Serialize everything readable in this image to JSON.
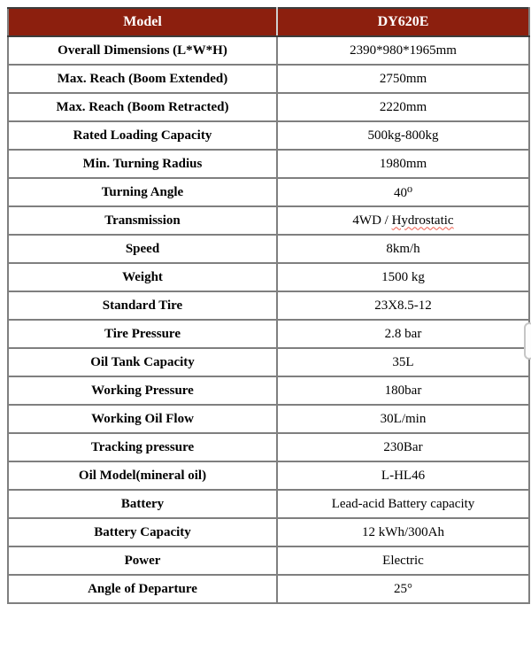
{
  "table": {
    "header": {
      "label": "Model",
      "value": "DY620E"
    },
    "rows": [
      {
        "label": "Overall Dimensions (L*W*H)",
        "value": "2390*980*1965mm"
      },
      {
        "label": "Max. Reach (Boom Extended)",
        "value": "2750mm"
      },
      {
        "label": "Max. Reach (Boom Retracted)",
        "value": "2220mm"
      },
      {
        "label": "Rated Loading Capacity",
        "value": "500kg-800kg"
      },
      {
        "label": "Min. Turning Radius",
        "value": "1980mm"
      },
      {
        "label": "Turning Angle",
        "value": "40⁰"
      },
      {
        "label": "Transmission",
        "value": "4WD / Hydrostatic",
        "spellcheck_word": "Hydrostatic"
      },
      {
        "label": "Speed",
        "value": "8km/h"
      },
      {
        "label": "Weight",
        "value": "1500 kg"
      },
      {
        "label": "Standard Tire",
        "value": "23X8.5-12"
      },
      {
        "label": "Tire Pressure",
        "value": "2.8 bar"
      },
      {
        "label": "Oil Tank Capacity",
        "value": "35L"
      },
      {
        "label": "Working Pressure",
        "value": "180bar"
      },
      {
        "label": "Working Oil Flow",
        "value": "30L/min"
      },
      {
        "label": "Tracking pressure",
        "value": "230Bar"
      },
      {
        "label": "Oil Model(mineral oil)",
        "value": "L-HL46"
      },
      {
        "label": "Battery",
        "value": "Lead-acid Battery capacity"
      },
      {
        "label": "Battery Capacity",
        "value": "12 kWh/300Ah"
      },
      {
        "label": "Power",
        "value": "Electric"
      },
      {
        "label": "Angle of Departure",
        "value": "25°"
      }
    ]
  },
  "colors": {
    "header_bg": "#8C1F0E",
    "header_text": "#FFFFFF",
    "border_inner": "#7F7F7F",
    "border_outer": "#4B4B4B",
    "spellcheck_underline": "#F05A4A"
  }
}
